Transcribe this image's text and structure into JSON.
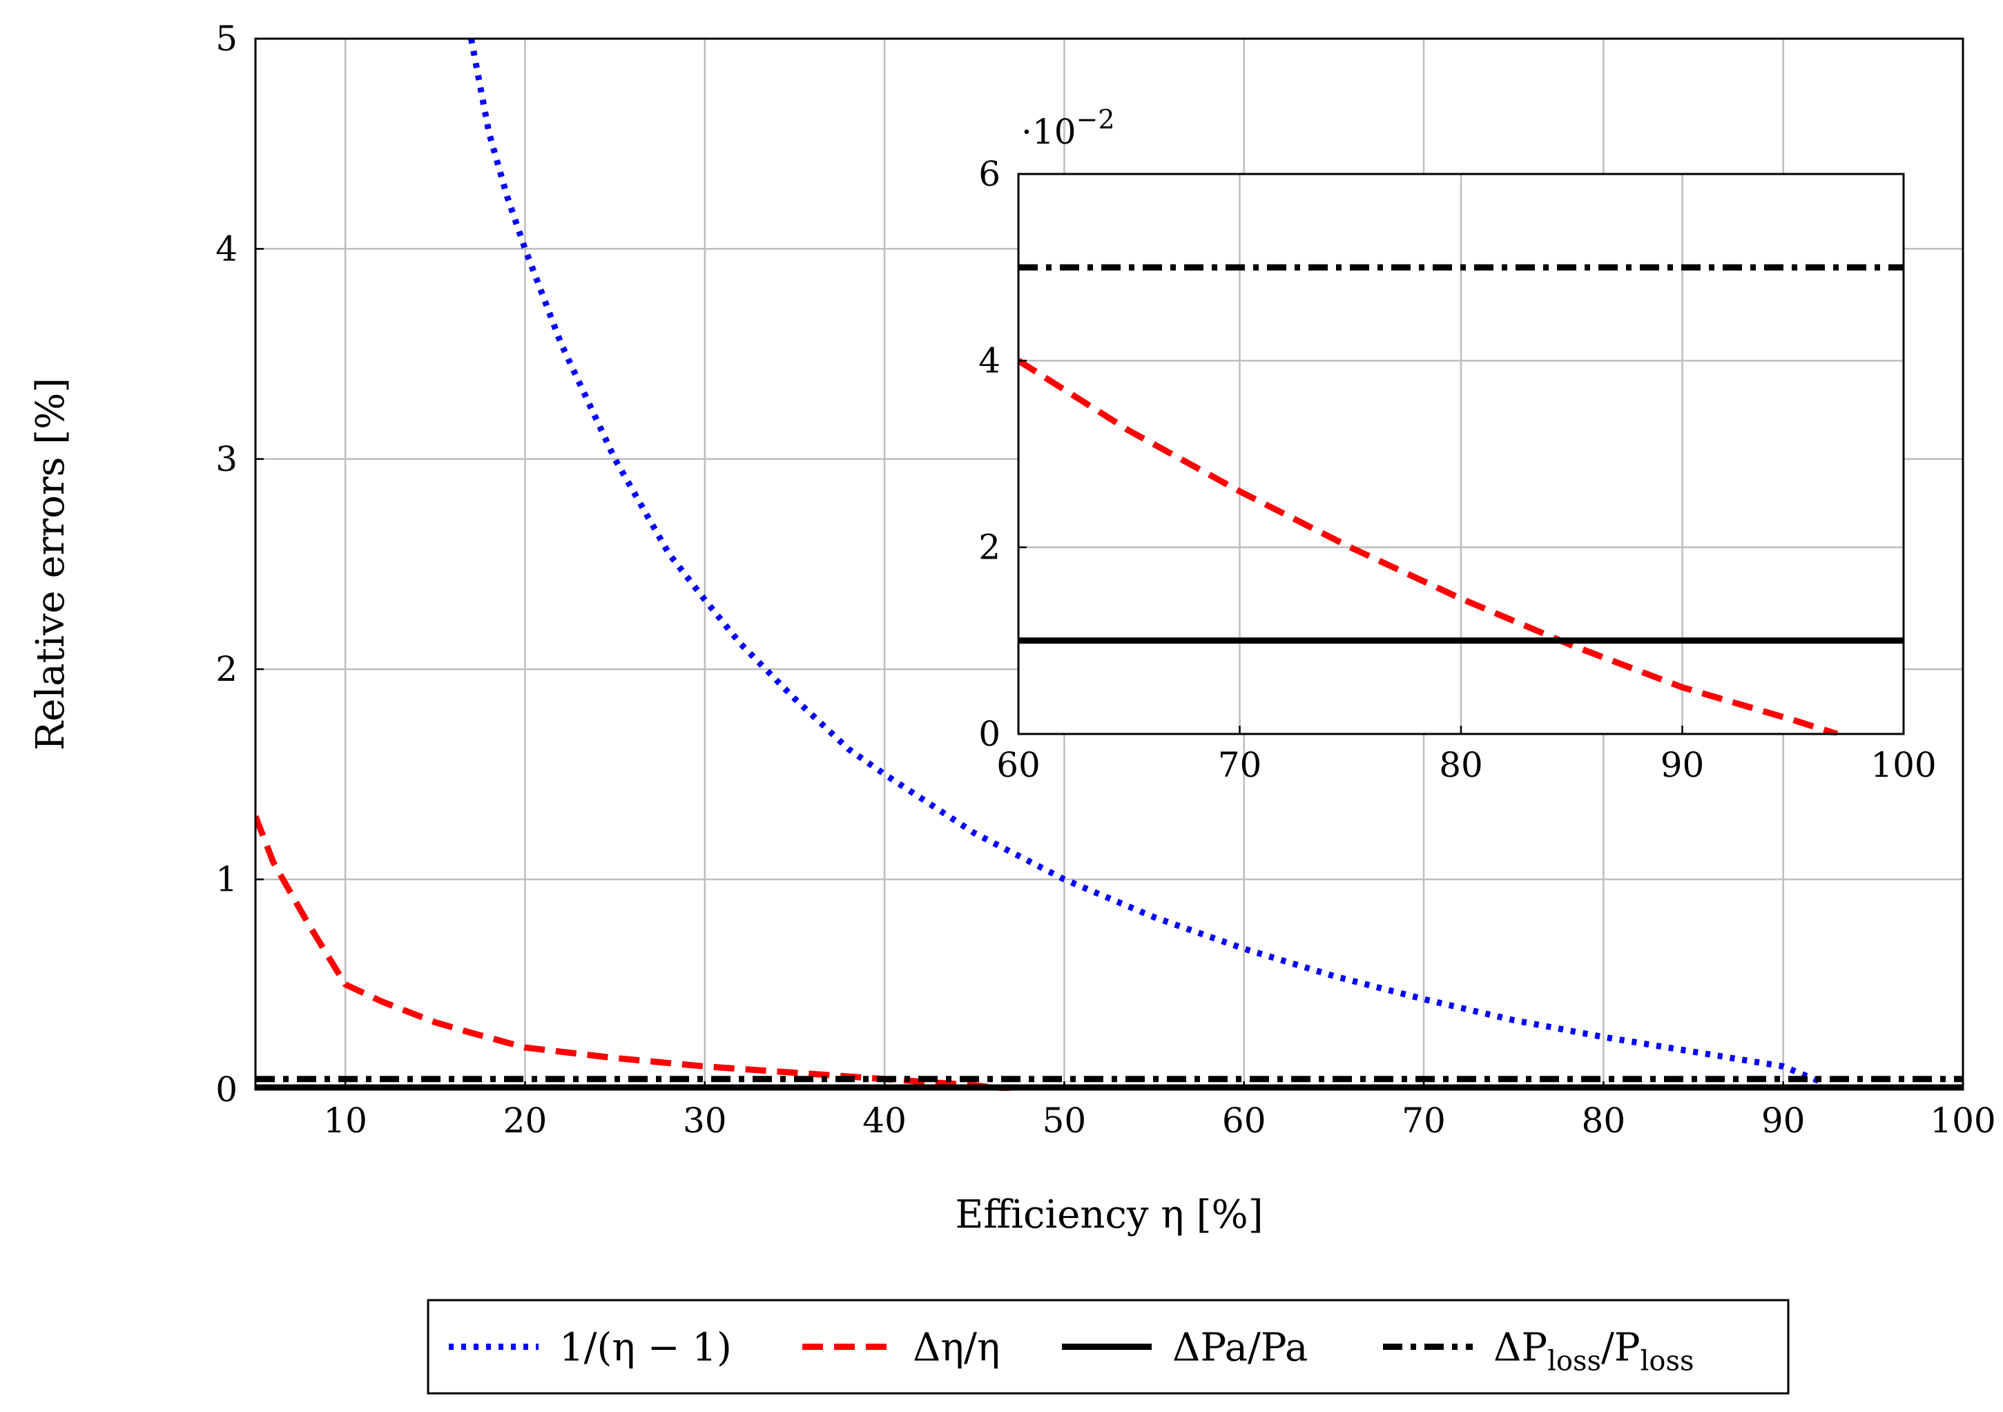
{
  "chart_data": [
    {
      "type": "line",
      "xlabel": "Efficiency η [%]",
      "ylabel": "Relative errors [%]",
      "xlim": [
        5,
        100
      ],
      "ylim": [
        0,
        5
      ],
      "xticks": [
        10,
        20,
        30,
        40,
        50,
        60,
        70,
        80,
        90,
        100
      ],
      "yticks": [
        0,
        1,
        2,
        3,
        4,
        5
      ],
      "grid": true,
      "legend_position": "bottom-outside",
      "series": [
        {
          "name": "1/(η − 1)",
          "color": "#0000ff",
          "style": "dotted",
          "x": [
            17,
            18,
            19,
            20,
            22,
            25,
            28,
            30,
            32,
            35,
            38,
            40,
            45,
            50,
            55,
            60,
            65,
            70,
            75,
            80,
            85,
            90,
            92
          ],
          "y": [
            5.0,
            4.55,
            4.25,
            4.0,
            3.55,
            3.0,
            2.55,
            2.33,
            2.12,
            1.86,
            1.62,
            1.5,
            1.22,
            1.0,
            0.82,
            0.67,
            0.54,
            0.43,
            0.33,
            0.25,
            0.18,
            0.11,
            0.04
          ]
        },
        {
          "name": "Δη/η",
          "color": "#ff0000",
          "style": "dashed",
          "x": [
            5,
            6,
            8,
            10,
            12,
            15,
            17,
            20,
            25,
            30,
            35,
            40,
            45,
            47
          ],
          "y": [
            1.3,
            1.08,
            0.78,
            0.5,
            0.42,
            0.32,
            0.27,
            0.2,
            0.15,
            0.11,
            0.08,
            0.05,
            0.02,
            0.0
          ]
        },
        {
          "name": "ΔPa/Pa",
          "color": "#000000",
          "style": "solid",
          "x": [
            5,
            100
          ],
          "y": [
            0.01,
            0.01
          ]
        },
        {
          "name": "ΔP_loss/P_loss",
          "color": "#000000",
          "style": "dashdot",
          "x": [
            5,
            100
          ],
          "y": [
            0.05,
            0.05
          ]
        }
      ]
    },
    {
      "type": "line",
      "role": "inset",
      "xlim": [
        60,
        100
      ],
      "ylim": [
        0,
        6
      ],
      "xticks": [
        60,
        70,
        80,
        90,
        100
      ],
      "yticks": [
        0,
        2,
        4,
        6
      ],
      "scale_label": "·10",
      "scale_exponent": "−2",
      "grid": true,
      "series": [
        {
          "name": "Δη/η",
          "color": "#ff0000",
          "style": "dashed",
          "x": [
            60,
            65,
            70,
            75,
            80,
            85,
            90,
            95,
            97
          ],
          "y": [
            4.0,
            3.25,
            2.6,
            2.0,
            1.45,
            0.95,
            0.5,
            0.15,
            0.0
          ]
        },
        {
          "name": "ΔPa/Pa",
          "color": "#000000",
          "style": "solid",
          "x": [
            60,
            100
          ],
          "y": [
            1.0,
            1.0
          ]
        },
        {
          "name": "ΔP_loss/P_loss",
          "color": "#000000",
          "style": "dashdot",
          "x": [
            60,
            100
          ],
          "y": [
            5.0,
            5.0
          ]
        }
      ]
    }
  ]
}
